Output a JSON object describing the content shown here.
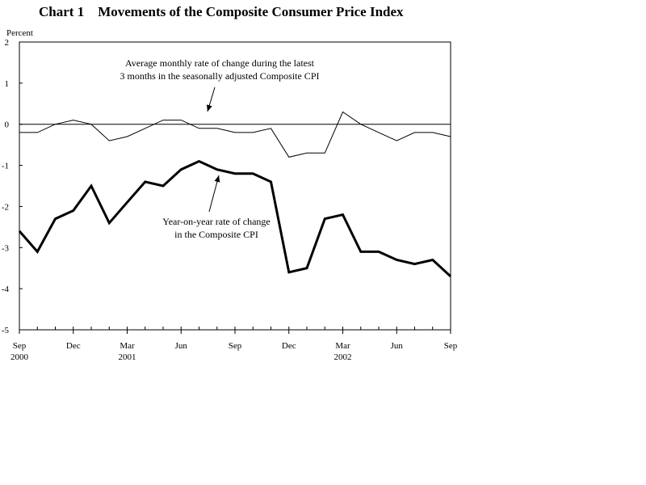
{
  "chart_data": {
    "type": "line",
    "title": "Chart 1    Movements of the Composite Consumer Price Index",
    "ylabel": "Percent",
    "xlabel": "",
    "ylim": [
      -5,
      2
    ],
    "yticks": [
      2,
      1,
      0,
      -1,
      -2,
      -3,
      -4,
      -5
    ],
    "x": [
      "2000-09",
      "2000-10",
      "2000-11",
      "2000-12",
      "2001-01",
      "2001-02",
      "2001-03",
      "2001-04",
      "2001-05",
      "2001-06",
      "2001-07",
      "2001-08",
      "2001-09",
      "2001-10",
      "2001-11",
      "2001-12",
      "2002-01",
      "2002-02",
      "2002-03",
      "2002-04",
      "2002-05",
      "2002-06",
      "2002-07",
      "2002-08",
      "2002-09"
    ],
    "xtick_labels": [
      {
        "month": "Sep",
        "year": "2000",
        "index": 0
      },
      {
        "month": "Dec",
        "year": "",
        "index": 3
      },
      {
        "month": "Mar",
        "year": "2001",
        "index": 6
      },
      {
        "month": "Jun",
        "year": "",
        "index": 9
      },
      {
        "month": "Sep",
        "year": "",
        "index": 12
      },
      {
        "month": "Dec",
        "year": "",
        "index": 15
      },
      {
        "month": "Mar",
        "year": "2002",
        "index": 18
      },
      {
        "month": "Jun",
        "year": "",
        "index": 21
      },
      {
        "month": "Sep",
        "year": "",
        "index": 24
      }
    ],
    "series": [
      {
        "values": [
          -0.2,
          -0.2,
          0.0,
          0.1,
          0.0,
          -0.4,
          -0.3,
          -0.1,
          0.1,
          0.1,
          -0.1,
          -0.1,
          -0.2,
          -0.2,
          -0.1,
          -0.8,
          -0.7,
          -0.7,
          0.3,
          0.0,
          -0.2,
          -0.4,
          -0.2,
          -0.2,
          -0.3
        ],
        "color": "#000000",
        "style": "thin"
      },
      {
        "values": [
          -2.6,
          -3.1,
          -2.3,
          -2.1,
          -1.5,
          -2.4,
          -1.9,
          -1.4,
          -1.5,
          -1.1,
          -0.9,
          -1.1,
          -1.2,
          -1.2,
          -1.4,
          -3.6,
          -3.5,
          -2.3,
          -2.2,
          -3.1,
          -3.1,
          -3.3,
          -3.4,
          -3.3,
          -3.7
        ],
        "color": "#000000",
        "style": "thick"
      }
    ],
    "annotations": [
      {
        "lines": [
          "Average monthly rate of change during the latest",
          "3 months in the seasonally adjusted Composite CPI"
        ]
      },
      {
        "lines": [
          "Year-on-year rate of change",
          "in the Composite CPI"
        ]
      }
    ],
    "zero_line": true,
    "grid": false
  }
}
